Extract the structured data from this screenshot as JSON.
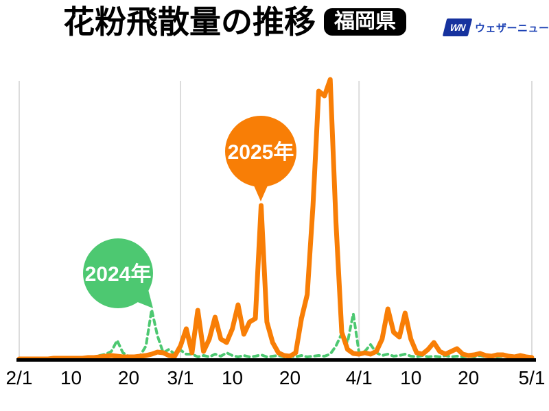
{
  "header": {
    "title": "花粉飛散量の推移",
    "region_badge": "福岡県",
    "logo": {
      "mark": "WN",
      "name": "ウェザーニュース",
      "mark_color": "#16329E",
      "text_color": "#1C41B4"
    }
  },
  "chart_data": {
    "type": "line",
    "title": "花粉飛散量の推移(福岡県)",
    "x": {
      "start": "2/1",
      "end": "5/1",
      "unit": "day (daily values from Feb 1 to May 1)",
      "tick_labels": [
        "2/1",
        "10",
        "20",
        "3/1",
        "10",
        "20",
        "4/1",
        "10",
        "20",
        "5/1"
      ],
      "tick_day_index": [
        0,
        9,
        19,
        28,
        37,
        47,
        59,
        68,
        78,
        89
      ],
      "month_gridline_day_index": [
        0,
        28,
        59,
        89
      ],
      "grid": "vertical month gridlines only"
    },
    "y": {
      "axis_visible": false,
      "unit": "relative pollen amount (no numeric scale shown)",
      "min": 0,
      "max": 420
    },
    "legend_position": "speech-bubble annotations inside plot",
    "series": [
      {
        "name": "2024年",
        "color": "#4DC871",
        "style": "dashed",
        "values": [
          1,
          1,
          1,
          1,
          1,
          1,
          1,
          2,
          2,
          2,
          2,
          3,
          4,
          4,
          6,
          8,
          12,
          28,
          10,
          5,
          4,
          6,
          20,
          73,
          35,
          10,
          15,
          8,
          14,
          8,
          8,
          4,
          6,
          4,
          8,
          5,
          10,
          6,
          4,
          6,
          4,
          5,
          7,
          4,
          5,
          6,
          4,
          5,
          4,
          6,
          4,
          5,
          6,
          5,
          8,
          20,
          38,
          25,
          67,
          10,
          12,
          22,
          10,
          6,
          8,
          5,
          6,
          8,
          5,
          4,
          6,
          4,
          5,
          4,
          6,
          4,
          5,
          4,
          5,
          4,
          6,
          4,
          5,
          4,
          5,
          4,
          4,
          5,
          4,
          3
        ]
      },
      {
        "name": "2025年",
        "color": "#F87E06",
        "style": "solid",
        "values": [
          1,
          1,
          1,
          1,
          1,
          1,
          2,
          2,
          2,
          2,
          2,
          2,
          3,
          3,
          4,
          5,
          6,
          5,
          4,
          4,
          4,
          5,
          6,
          8,
          11,
          10,
          6,
          5,
          20,
          45,
          10,
          72,
          12,
          30,
          62,
          30,
          25,
          45,
          80,
          37,
          55,
          60,
          225,
          55,
          25,
          10,
          6,
          5,
          10,
          60,
          95,
          225,
          392,
          385,
          409,
          200,
          40,
          15,
          9,
          8,
          10,
          8,
          12,
          30,
          74,
          40,
          33,
          68,
          30,
          10,
          8,
          15,
          25,
          12,
          8,
          12,
          16,
          8,
          6,
          7,
          9,
          6,
          5,
          7,
          7,
          5,
          4,
          6,
          4,
          3
        ]
      }
    ],
    "peaks_note": {
      "2024_peaks": [
        "2/24 (≈73)",
        "3/31 (≈67)"
      ],
      "2025_peaks": [
        "3/15 (≈225)",
        "3/27 (≈409 max)",
        "4/6 (≈74)",
        "4/9 (≈68)"
      ]
    }
  },
  "annotations": [
    {
      "label": "2024年",
      "color": "#4DC871",
      "points_to": "2024 series peak on 2/24"
    },
    {
      "label": "2025年",
      "color": "#F87E06",
      "points_to": "2025 series spike on 3/15"
    }
  ],
  "colors": {
    "orange_2025": "#F87E06",
    "green_2024": "#4DC871",
    "gridline": "#DCDCDC",
    "axis": "#000000",
    "background": "#FFFFFF",
    "badge_bg": "#000000",
    "badge_text": "#FFFFFF"
  }
}
